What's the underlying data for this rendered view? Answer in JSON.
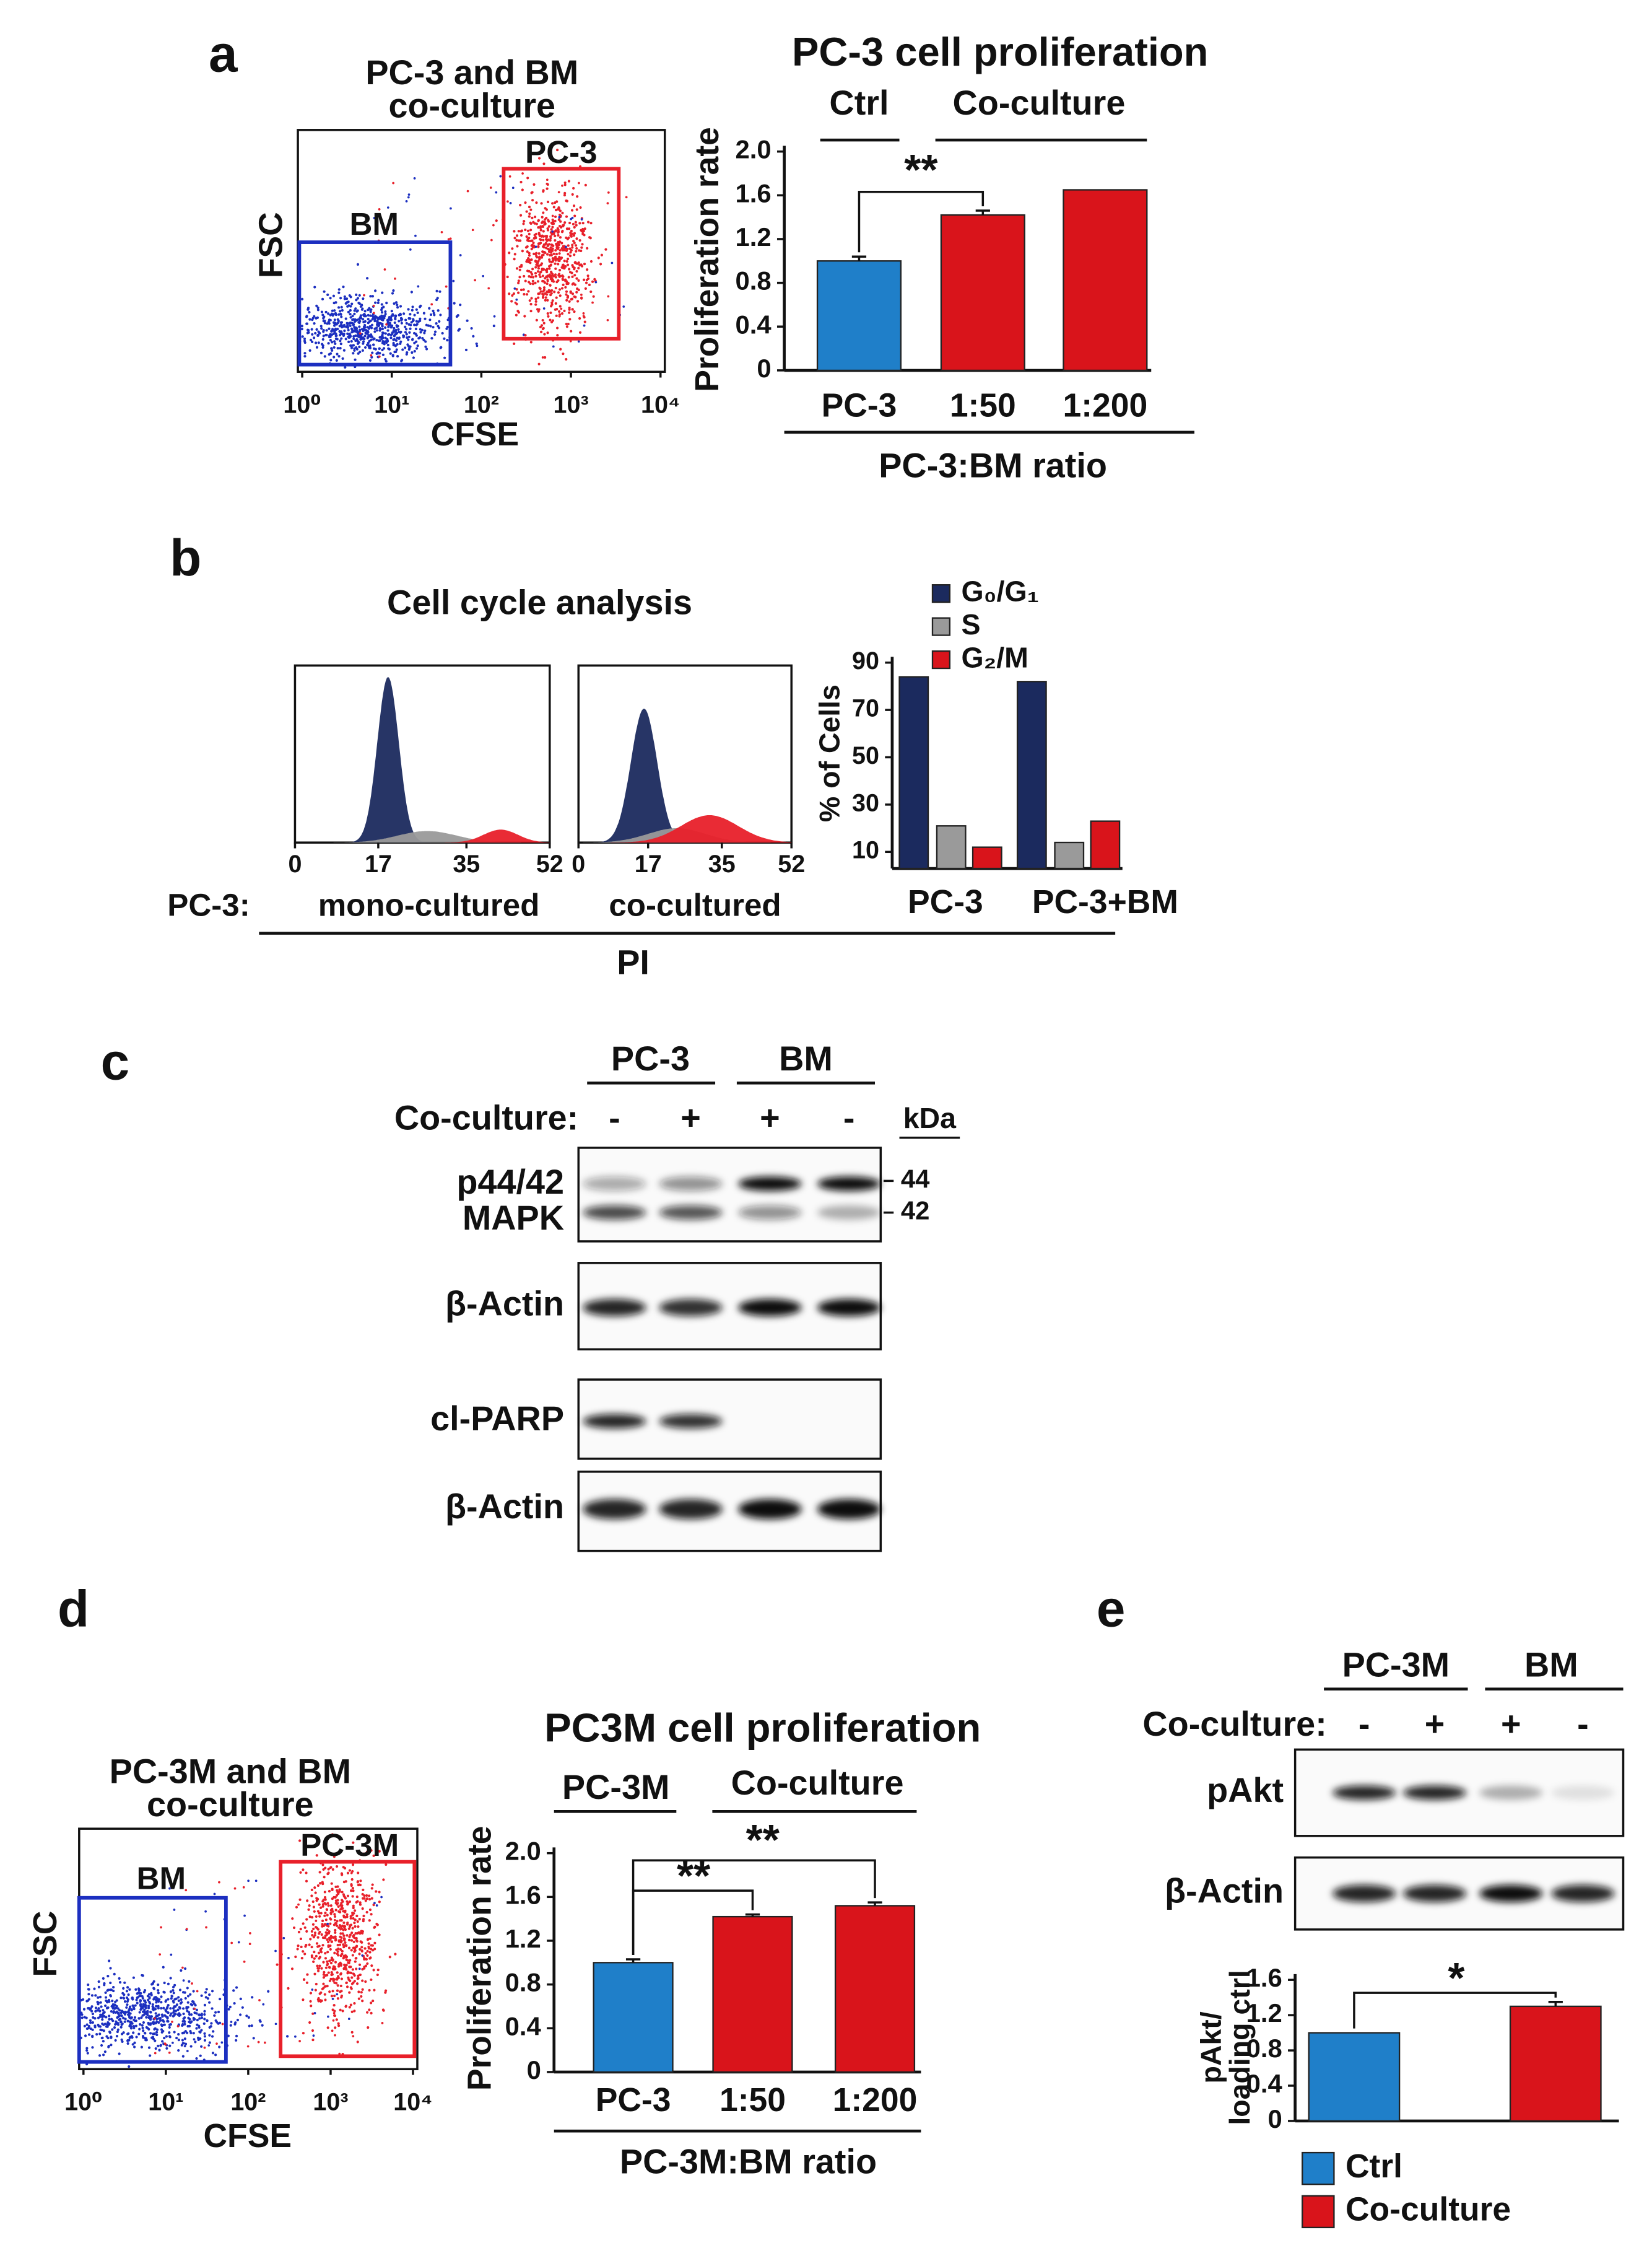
{
  "panel_labels": [
    "a",
    "b",
    "c",
    "d",
    "e"
  ],
  "flow_a": {
    "title": [
      "PC-3 and BM",
      "co-culture"
    ],
    "x_label": "CFSE",
    "y_label": "FSC",
    "xscale": "log",
    "xlim": [
      1,
      10000
    ],
    "xticks": [
      {
        "value": 1,
        "label": "10⁰"
      },
      {
        "value": 10,
        "label": "10¹"
      },
      {
        "value": 100,
        "label": "10²"
      },
      {
        "value": 1000,
        "label": "10³"
      },
      {
        "value": 10000,
        "label": "10⁴"
      }
    ],
    "gates": [
      {
        "label": "BM",
        "color": "#1c2fc0"
      },
      {
        "label": "PC-3",
        "color": "#e8202a"
      }
    ]
  },
  "flow_d": {
    "title": [
      "PC-3M and BM",
      "co-culture"
    ],
    "x_label": "CFSE",
    "y_label": "FSC",
    "xscale": "log",
    "xlim": [
      1,
      10000
    ],
    "xticks": [
      {
        "value": 1,
        "label": "10⁰"
      },
      {
        "value": 10,
        "label": "10¹"
      },
      {
        "value": 100,
        "label": "10²"
      },
      {
        "value": 1000,
        "label": "10³"
      },
      {
        "value": 10000,
        "label": "10⁴"
      }
    ],
    "gates": [
      {
        "label": "BM",
        "color": "#1c2fc0"
      },
      {
        "label": "PC-3M",
        "color": "#e8202a"
      }
    ]
  },
  "cell_cycle": {
    "title": "Cell cycle analysis",
    "row_label": "PC-3:",
    "conditions": [
      "mono-cultured",
      "co-cultured"
    ],
    "x_label": "PI",
    "xlim": [
      0,
      52
    ],
    "xticks": [
      0,
      17,
      35,
      52
    ]
  },
  "blot_c": {
    "groups": [
      "PC-3",
      "BM"
    ],
    "condition_label": "Co-culture:",
    "conditions": [
      "-",
      "+",
      "+",
      "-"
    ],
    "unit": "kDa",
    "rows": [
      [
        "p44/42",
        "MAPK"
      ],
      [
        "β-Actin"
      ],
      [
        "cl-PARP"
      ],
      [
        "β-Actin"
      ]
    ],
    "markers": [
      "44",
      "42"
    ]
  },
  "blot_e": {
    "groups": [
      "PC-3M",
      "BM"
    ],
    "condition_label": "Co-culture:",
    "conditions": [
      "-",
      "+",
      "+",
      "-"
    ],
    "rows": [
      [
        "pAkt"
      ],
      [
        "β-Actin"
      ]
    ]
  },
  "chart_data": [
    {
      "type": "bar",
      "title": "PC-3 cell proliferation",
      "y_label": "Proliferation rate",
      "x_label": "PC-3:BM ratio",
      "group_labels": [
        "Ctrl",
        "Co-culture"
      ],
      "categories": [
        "PC-3",
        "1:50",
        "1:200"
      ],
      "values": [
        1.0,
        1.42,
        1.65
      ],
      "errors": [
        0.04,
        0.04,
        null
      ],
      "colors": [
        "#1f7fc9",
        "#d9141b",
        "#d9141b"
      ],
      "ylim": [
        0,
        2
      ],
      "yticks": [
        0,
        0.4,
        0.8,
        1.2,
        1.6,
        {
          "value": 2,
          "label": "2.0"
        }
      ],
      "annotations": [
        "**"
      ]
    },
    {
      "type": "grouped_bar",
      "y_label": "% of Cells",
      "categories": [
        "PC-3",
        "PC-3+BM"
      ],
      "series": [
        {
          "name": "G₀/G₁",
          "color": "#1b2a5e",
          "values": [
            84,
            82
          ]
        },
        {
          "name": "S",
          "color": "#9a9a9a",
          "values": [
            21,
            14
          ]
        },
        {
          "name": "G₂/M",
          "color": "#d9141b",
          "values": [
            12,
            23
          ]
        }
      ],
      "ylim": [
        3,
        90
      ],
      "yticks": [
        10,
        30,
        50,
        70,
        90
      ],
      "legend": "top"
    },
    {
      "type": "bar",
      "title": "PC3M cell proliferation",
      "y_label": "Proliferation rate",
      "x_label": "PC-3M:BM ratio",
      "group_labels": [
        "PC-3M",
        "Co-culture"
      ],
      "categories": [
        "PC-3",
        "1:50",
        "1:200"
      ],
      "values": [
        1.0,
        1.42,
        1.52
      ],
      "errors": [
        0.03,
        0.02,
        0.03
      ],
      "colors": [
        "#1f7fc9",
        "#d9141b",
        "#d9141b"
      ],
      "ylim": [
        0,
        2
      ],
      "yticks": [
        0,
        0.4,
        0.8,
        1.2,
        1.6,
        {
          "value": 2,
          "label": "2.0"
        }
      ],
      "annotations": [
        "**",
        "**"
      ]
    },
    {
      "type": "bar_series",
      "y_label": [
        "pAkt/",
        "loading ctrl"
      ],
      "series": [
        {
          "name": "Ctrl",
          "color": "#1f7fc9",
          "values": [
            1.0
          ],
          "errors": [
            null
          ]
        },
        {
          "name": "Co-culture",
          "color": "#d9141b",
          "values": [
            1.3
          ],
          "errors": [
            0.05
          ]
        }
      ],
      "ylim": [
        0,
        1.6
      ],
      "yticks": [
        0,
        0.4,
        0.8,
        1.2,
        1.6
      ],
      "annotations": [
        "*"
      ],
      "legend": "bottom"
    }
  ]
}
